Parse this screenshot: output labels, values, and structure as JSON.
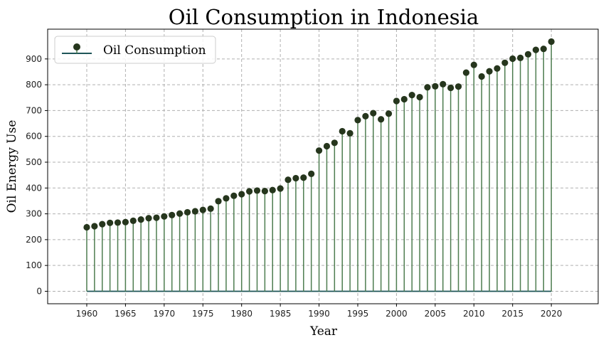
{
  "chart_data": {
    "type": "stem",
    "title": "Oil Consumption in Indonesia",
    "xlabel": "Year",
    "ylabel": "Oil Energy Use",
    "x": [
      1960,
      1961,
      1962,
      1963,
      1964,
      1965,
      1966,
      1967,
      1968,
      1969,
      1970,
      1971,
      1972,
      1973,
      1974,
      1975,
      1976,
      1977,
      1978,
      1979,
      1980,
      1981,
      1982,
      1983,
      1984,
      1985,
      1986,
      1987,
      1988,
      1989,
      1990,
      1991,
      1992,
      1993,
      1994,
      1995,
      1996,
      1997,
      1998,
      1999,
      2000,
      2001,
      2002,
      2003,
      2004,
      2005,
      2006,
      2007,
      2008,
      2009,
      2010,
      2011,
      2012,
      2013,
      2014,
      2015,
      2016,
      2017,
      2018,
      2019,
      2020
    ],
    "series": [
      {
        "name": "Oil Consumption",
        "values": [
          248,
          252,
          260,
          265,
          266,
          268,
          273,
          278,
          283,
          285,
          290,
          295,
          301,
          306,
          310,
          315,
          320,
          349,
          360,
          370,
          376,
          387,
          390,
          388,
          392,
          398,
          432,
          438,
          440,
          455,
          545,
          562,
          575,
          620,
          612,
          663,
          678,
          690,
          666,
          688,
          737,
          744,
          760,
          752,
          790,
          794,
          802,
          788,
          793,
          847,
          877,
          832,
          852,
          863,
          885,
          901,
          904,
          918,
          935,
          939,
          967
        ],
        "stem_color": "#4e7d50",
        "marker_color": "#26361d",
        "baseline_color": "#1e5558"
      }
    ],
    "xlim": [
      1954.95,
      2026.05
    ],
    "ylim": [
      -48.3,
      1015.3
    ],
    "xticks": [
      1960,
      1965,
      1970,
      1975,
      1980,
      1985,
      1990,
      1995,
      2000,
      2005,
      2010,
      2015,
      2020
    ],
    "yticks": [
      0,
      100,
      200,
      300,
      400,
      500,
      600,
      700,
      800,
      900
    ],
    "grid": true,
    "legend_position": "upper-left"
  }
}
